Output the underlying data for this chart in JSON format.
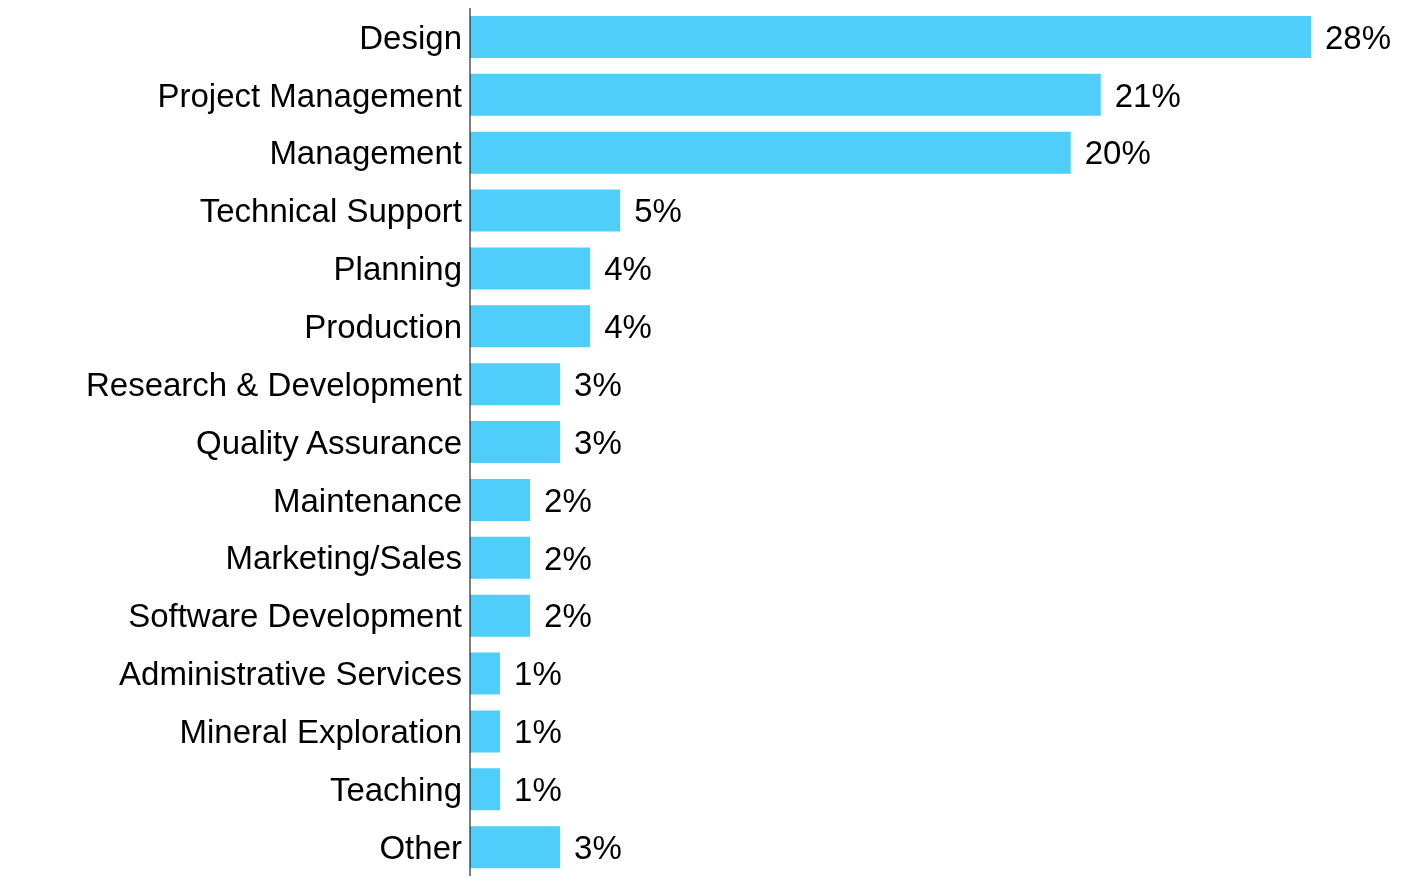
{
  "chart_data": {
    "type": "bar",
    "orientation": "horizontal",
    "categories": [
      "Design",
      "Project Management",
      "Management",
      "Technical Support",
      "Planning",
      "Production",
      "Research & Development",
      "Quality Assurance",
      "Maintenance",
      "Marketing/Sales",
      "Software Development",
      "Administrative Services",
      "Mineral Exploration",
      "Teaching",
      "Other"
    ],
    "values": [
      28,
      21,
      20,
      5,
      4,
      4,
      3,
      3,
      2,
      2,
      2,
      1,
      1,
      1,
      3
    ],
    "value_labels": [
      "28%",
      "21%",
      "20%",
      "5%",
      "4%",
      "4%",
      "3%",
      "3%",
      "2%",
      "2%",
      "2%",
      "1%",
      "1%",
      "1%",
      "3%"
    ],
    "color": "#4fcdfb"
  }
}
